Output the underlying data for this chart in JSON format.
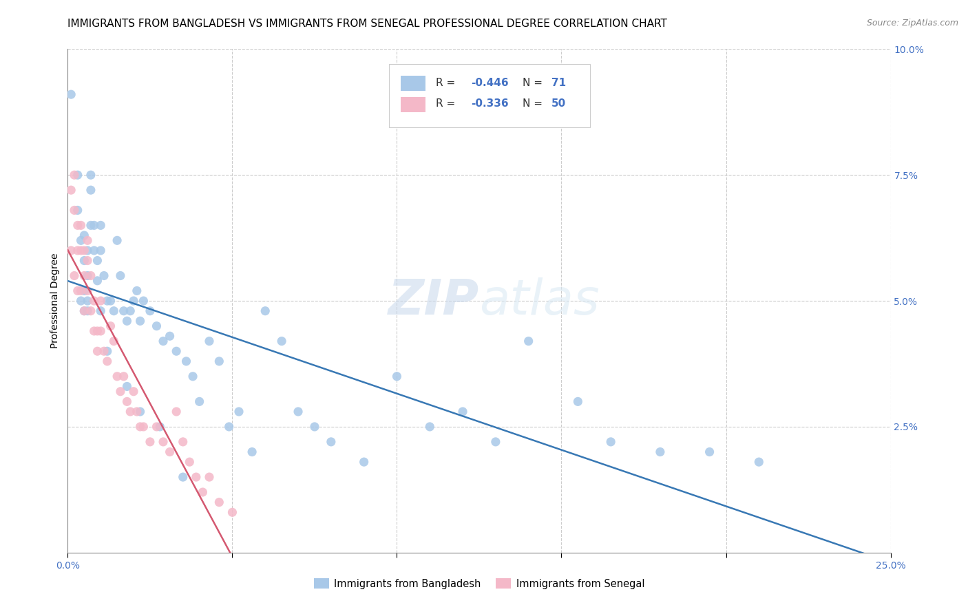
{
  "title": "IMMIGRANTS FROM BANGLADESH VS IMMIGRANTS FROM SENEGAL PROFESSIONAL DEGREE CORRELATION CHART",
  "source": "Source: ZipAtlas.com",
  "ylabel": "Professional Degree",
  "xlim": [
    0.0,
    0.25
  ],
  "ylim": [
    0.0,
    0.1
  ],
  "x_tick_positions": [
    0.0,
    0.05,
    0.1,
    0.15,
    0.2,
    0.25
  ],
  "x_tick_labels": [
    "0.0%",
    "",
    "",
    "",
    "",
    "25.0%"
  ],
  "y_tick_positions": [
    0.0,
    0.025,
    0.05,
    0.075,
    0.1
  ],
  "y_tick_labels_right": [
    "",
    "2.5%",
    "5.0%",
    "7.5%",
    "10.0%"
  ],
  "blue_color": "#a8c8e8",
  "pink_color": "#f4b8c8",
  "blue_line_color": "#3878b4",
  "pink_line_color": "#d45870",
  "tick_color": "#4472c4",
  "watermark_color": "#d0e4f4",
  "bangladesh_x": [
    0.001,
    0.003,
    0.003,
    0.004,
    0.004,
    0.005,
    0.005,
    0.005,
    0.005,
    0.006,
    0.006,
    0.006,
    0.007,
    0.007,
    0.008,
    0.008,
    0.009,
    0.009,
    0.01,
    0.01,
    0.011,
    0.012,
    0.013,
    0.014,
    0.015,
    0.016,
    0.017,
    0.018,
    0.019,
    0.02,
    0.021,
    0.022,
    0.023,
    0.025,
    0.027,
    0.029,
    0.031,
    0.033,
    0.036,
    0.038,
    0.04,
    0.043,
    0.046,
    0.049,
    0.052,
    0.056,
    0.06,
    0.065,
    0.07,
    0.075,
    0.08,
    0.09,
    0.1,
    0.11,
    0.12,
    0.13,
    0.14,
    0.155,
    0.165,
    0.18,
    0.195,
    0.21,
    0.006,
    0.007,
    0.01,
    0.012,
    0.018,
    0.022,
    0.028,
    0.035
  ],
  "bangladesh_y": [
    0.091,
    0.068,
    0.075,
    0.05,
    0.062,
    0.063,
    0.058,
    0.052,
    0.048,
    0.06,
    0.055,
    0.05,
    0.075,
    0.072,
    0.065,
    0.06,
    0.058,
    0.054,
    0.065,
    0.06,
    0.055,
    0.05,
    0.05,
    0.048,
    0.062,
    0.055,
    0.048,
    0.046,
    0.048,
    0.05,
    0.052,
    0.046,
    0.05,
    0.048,
    0.045,
    0.042,
    0.043,
    0.04,
    0.038,
    0.035,
    0.03,
    0.042,
    0.038,
    0.025,
    0.028,
    0.02,
    0.048,
    0.042,
    0.028,
    0.025,
    0.022,
    0.018,
    0.035,
    0.025,
    0.028,
    0.022,
    0.042,
    0.03,
    0.022,
    0.02,
    0.02,
    0.018,
    0.048,
    0.065,
    0.048,
    0.04,
    0.033,
    0.028,
    0.025,
    0.015
  ],
  "senegal_x": [
    0.001,
    0.001,
    0.002,
    0.002,
    0.002,
    0.003,
    0.003,
    0.003,
    0.004,
    0.004,
    0.004,
    0.005,
    0.005,
    0.005,
    0.006,
    0.006,
    0.006,
    0.007,
    0.007,
    0.008,
    0.008,
    0.009,
    0.009,
    0.01,
    0.01,
    0.011,
    0.012,
    0.013,
    0.014,
    0.015,
    0.016,
    0.017,
    0.018,
    0.019,
    0.02,
    0.021,
    0.022,
    0.023,
    0.025,
    0.027,
    0.029,
    0.031,
    0.033,
    0.035,
    0.037,
    0.039,
    0.041,
    0.043,
    0.046,
    0.05
  ],
  "senegal_y": [
    0.072,
    0.06,
    0.075,
    0.068,
    0.055,
    0.065,
    0.06,
    0.052,
    0.065,
    0.06,
    0.052,
    0.06,
    0.055,
    0.048,
    0.062,
    0.058,
    0.052,
    0.055,
    0.048,
    0.05,
    0.044,
    0.044,
    0.04,
    0.05,
    0.044,
    0.04,
    0.038,
    0.045,
    0.042,
    0.035,
    0.032,
    0.035,
    0.03,
    0.028,
    0.032,
    0.028,
    0.025,
    0.025,
    0.022,
    0.025,
    0.022,
    0.02,
    0.028,
    0.022,
    0.018,
    0.015,
    0.012,
    0.015,
    0.01,
    0.008
  ],
  "title_fontsize": 11,
  "axis_label_fontsize": 10,
  "tick_fontsize": 10,
  "legend_fontsize": 11,
  "watermark_fontsize": 52,
  "source_fontsize": 9
}
